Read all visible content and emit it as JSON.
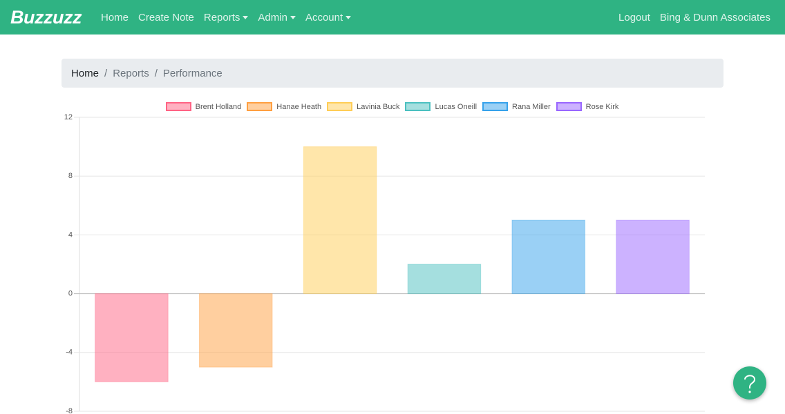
{
  "navbar": {
    "brand": "Buzzuzz",
    "links": [
      {
        "label": "Home"
      },
      {
        "label": "Create Note"
      },
      {
        "label": "Reports",
        "dropdown": true
      },
      {
        "label": "Admin",
        "dropdown": true
      },
      {
        "label": "Account",
        "dropdown": true
      }
    ],
    "right_links": [
      "Logout",
      "Bing & Dunn Associates"
    ]
  },
  "breadcrumb": {
    "items": [
      "Home",
      "Reports",
      "Performance"
    ],
    "separator": "/"
  },
  "chart_data": {
    "type": "bar",
    "categories": [
      null
    ],
    "series": [
      {
        "name": "Brent Holland",
        "color": "#ff6384",
        "values": [
          -6
        ]
      },
      {
        "name": "Hanae Heath",
        "color": "#ff9f40",
        "values": [
          -5
        ]
      },
      {
        "name": "Lavinia Buck",
        "color": "#ffcd56",
        "values": [
          10
        ]
      },
      {
        "name": "Lucas Oneill",
        "color": "#4bc0c0",
        "values": [
          2
        ]
      },
      {
        "name": "Rana Miller",
        "color": "#36a2eb",
        "values": [
          5
        ]
      },
      {
        "name": "Rose Kirk",
        "color": "#9966ff",
        "values": [
          5
        ]
      }
    ],
    "ylim": [
      -8,
      12
    ],
    "yticks": [
      -8,
      -4,
      0,
      4,
      8,
      12
    ],
    "grid": true,
    "legend": "top"
  }
}
